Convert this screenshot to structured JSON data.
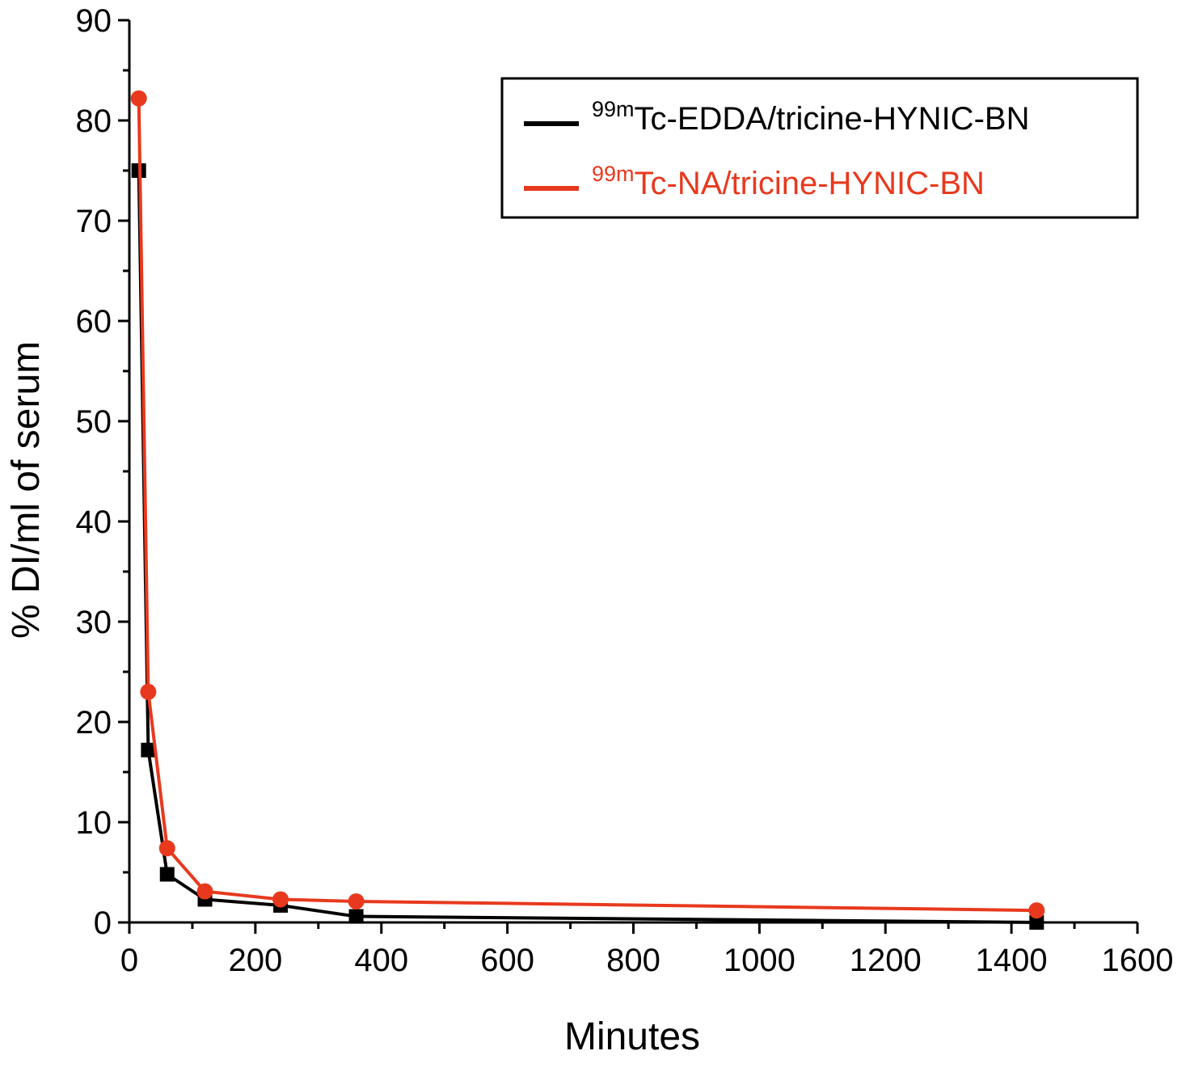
{
  "chart_data": {
    "type": "line",
    "xlabel": "Minutes",
    "ylabel": "% DI/ml of serum",
    "xlim": [
      0,
      1600
    ],
    "ylim": [
      0,
      90
    ],
    "x_ticks": [
      "0",
      "200",
      "400",
      "600",
      "800",
      "1000",
      "1200",
      "1400",
      "1600"
    ],
    "y_ticks": [
      "0",
      "10",
      "20",
      "30",
      "40",
      "50",
      "60",
      "70",
      "80",
      "90"
    ],
    "grid": false,
    "legend_position": "top-right",
    "series": [
      {
        "sup": "99m",
        "name": "Tc-EDDA/tricine-HYNIC-BN",
        "color": "#000000",
        "marker": "square",
        "x": [
          15,
          30,
          60,
          120,
          240,
          360,
          1440
        ],
        "y": [
          75.0,
          17.2,
          4.8,
          2.3,
          1.7,
          0.6,
          0.0
        ]
      },
      {
        "sup": "99m",
        "name": "Tc-NA/tricine-HYNIC-BN",
        "color": "#e8391e",
        "marker": "circle",
        "x": [
          15,
          30,
          60,
          120,
          240,
          360,
          1440
        ],
        "y": [
          82.2,
          23.0,
          7.4,
          3.1,
          2.3,
          2.1,
          1.2
        ]
      }
    ]
  }
}
